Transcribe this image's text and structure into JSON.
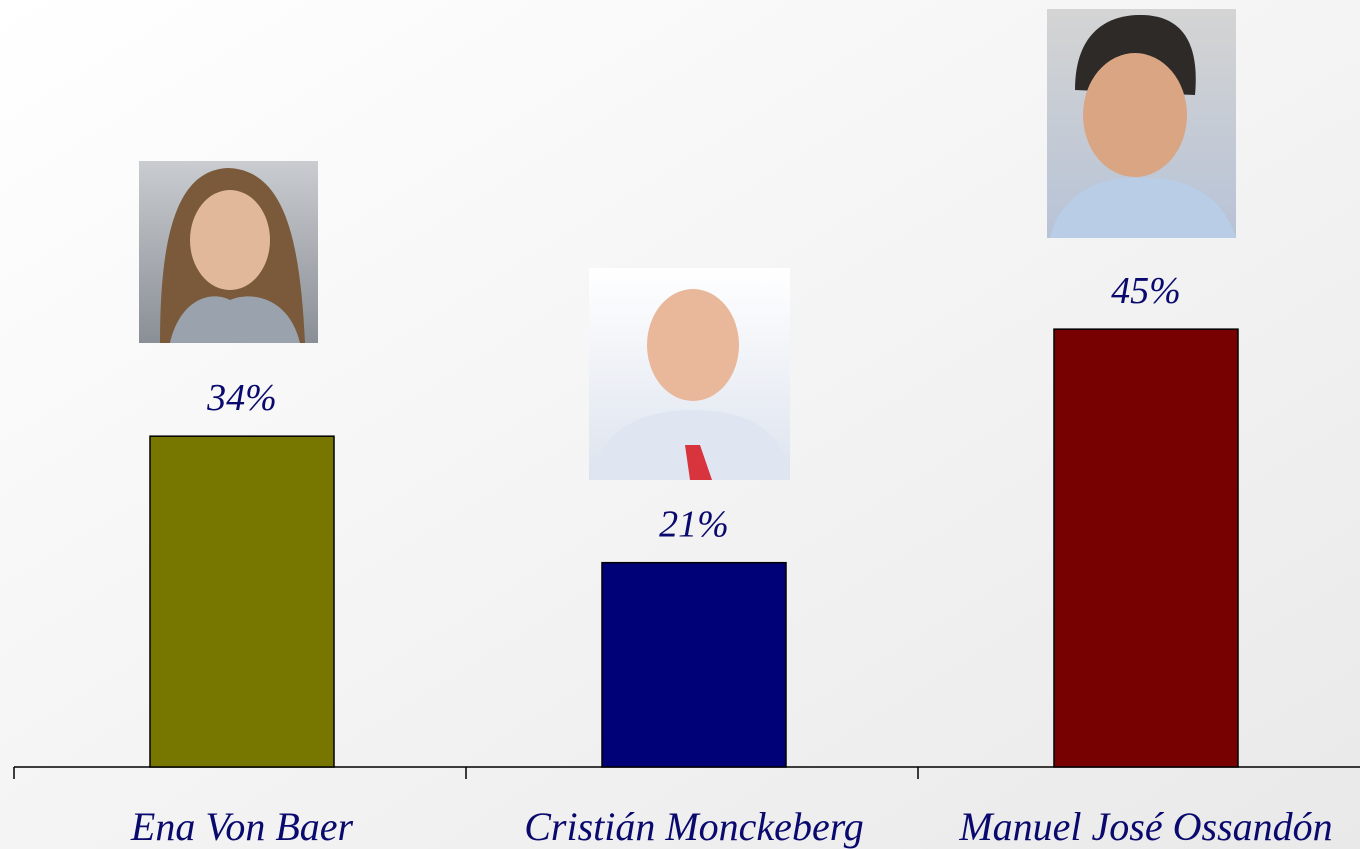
{
  "chart_data": {
    "type": "bar",
    "categories": [
      "Ena Von Baer",
      "Cristián Monckeberg",
      "Manuel José Ossandón"
    ],
    "values": [
      34,
      21,
      45
    ],
    "value_labels": [
      "34%",
      "21%",
      "45%"
    ],
    "colors": [
      "#777700",
      "#000077",
      "#770000"
    ]
  }
}
